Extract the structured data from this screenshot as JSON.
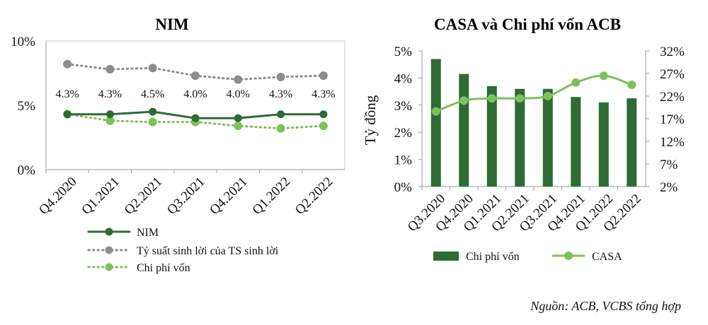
{
  "source": "Nguồn: ACB, VCBS tổng hợp",
  "colors": {
    "dark_green": "#2e6b35",
    "grey": "#8c8c8c",
    "light_green": "#7cc25a",
    "axis": "#9a9a9a"
  },
  "chart_data": [
    {
      "type": "line",
      "title": "NIM",
      "categories": [
        "Q4.2020",
        "Q1.2021",
        "Q2.2021",
        "Q3.2021",
        "Q4.2021",
        "Q1.2022",
        "Q2.2022"
      ],
      "yticks": [
        "0%",
        "5%",
        "10%"
      ],
      "ylim": [
        0,
        10
      ],
      "series": [
        {
          "name": "NIM",
          "values": [
            4.3,
            4.3,
            4.5,
            4.0,
            4.0,
            4.3,
            4.3
          ],
          "labels": [
            "4.3%",
            "4.3%",
            "4.5%",
            "4.0%",
            "4.0%",
            "4.3%",
            "4.3%"
          ],
          "style": "solid",
          "color": "#2e6b35"
        },
        {
          "name": "Tỷ suất sinh lời của TS sinh lời",
          "values": [
            8.2,
            7.8,
            7.9,
            7.3,
            7.0,
            7.2,
            7.3
          ],
          "style": "dotted",
          "color": "#8c8c8c"
        },
        {
          "name": "Chi phí vốn",
          "values": [
            4.3,
            3.8,
            3.7,
            3.7,
            3.4,
            3.2,
            3.4
          ],
          "style": "dotted",
          "color": "#7cc25a"
        }
      ],
      "legend": "bottom"
    },
    {
      "type": "bar+line",
      "title": "CASA và Chi phí vốn ACB",
      "categories": [
        "Q3.2020",
        "Q4.2020",
        "Q1.2021",
        "Q2.2021",
        "Q3.2021",
        "Q4.2021",
        "Q1.2022",
        "Q2.2022"
      ],
      "ylabel": "Tỷ đồng",
      "yticks_left": [
        "0%",
        "1%",
        "2%",
        "3%",
        "4%",
        "5%"
      ],
      "ylim_left": [
        0,
        5
      ],
      "yticks_right": [
        "2%",
        "7%",
        "12%",
        "17%",
        "22%",
        "27%",
        "32%"
      ],
      "ylim_right": [
        2,
        32
      ],
      "series": [
        {
          "name": "Chi phí vốn",
          "type": "bar",
          "axis": "left",
          "values": [
            4.7,
            4.15,
            3.7,
            3.6,
            3.6,
            3.3,
            3.1,
            3.25
          ],
          "color": "#2e6b35"
        },
        {
          "name": "CASA",
          "type": "line",
          "axis": "right",
          "values": [
            18.6,
            21.0,
            21.5,
            21.5,
            22.0,
            25.0,
            26.5,
            24.5
          ],
          "color": "#7cc25a"
        }
      ],
      "legend": "bottom"
    }
  ]
}
